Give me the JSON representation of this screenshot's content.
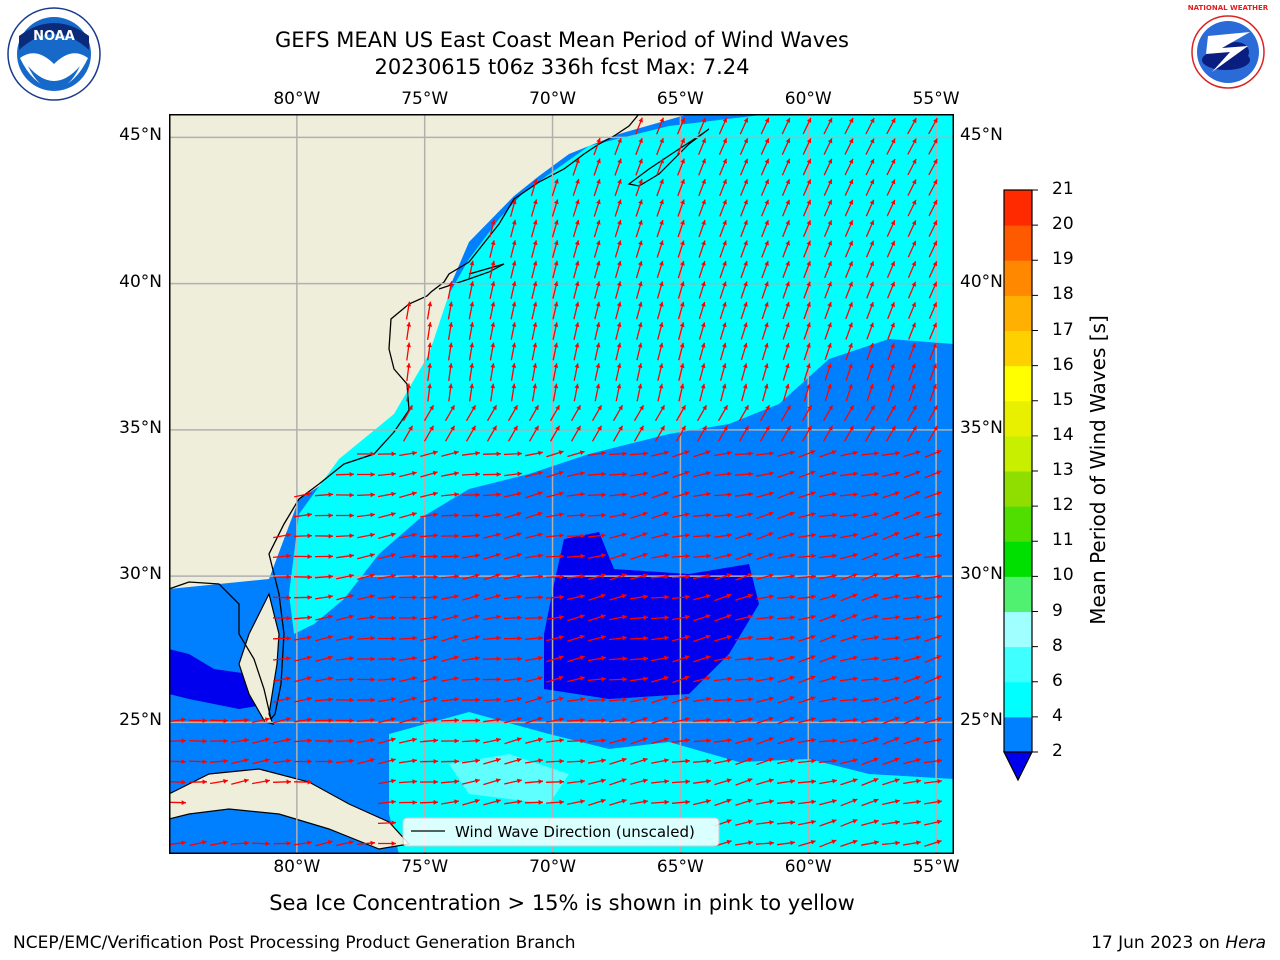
{
  "title": {
    "line1": "GEFS MEAN US East Coast Mean Period of Wind Waves",
    "line2": "20230615 t06z 336h fcst   Max: 7.24"
  },
  "logos": {
    "left": {
      "icon": "noaa-logo-icon",
      "text": "NOAA"
    },
    "right": {
      "icon": "nws-logo-icon",
      "text": "NATIONAL WEATHER SERVICE"
    }
  },
  "map": {
    "lon_labels": [
      "80°W",
      "75°W",
      "70°W",
      "65°W",
      "60°W",
      "55°W"
    ],
    "lat_labels": [
      "45°N",
      "40°N",
      "35°N",
      "30°N",
      "25°N"
    ],
    "lon_values": [
      -80,
      -75,
      -70,
      -65,
      -60,
      -55
    ],
    "lat_values": [
      45,
      40,
      35,
      30,
      25
    ],
    "extent": {
      "lon_min": -85,
      "lon_max": -54.3,
      "lat_min": 20.5,
      "lat_max": 45.8
    },
    "land_color": "#efeedb",
    "arrow_color": "#ff0000",
    "legend_label": "Wind Wave Direction (unscaled)"
  },
  "colorbar": {
    "label": "Mean Period of Wind Waves [s]",
    "ticks": [
      "2",
      "4",
      "6",
      "8",
      "9",
      "10",
      "11",
      "12",
      "13",
      "14",
      "15",
      "16",
      "17",
      "18",
      "19",
      "20",
      "21"
    ],
    "levels": [
      2,
      4,
      6,
      8,
      9,
      10,
      11,
      12,
      13,
      14,
      15,
      16,
      17,
      18,
      19,
      20,
      21
    ],
    "under_color": "#0000ee",
    "colors": [
      "#0080ff",
      "#00ffff",
      "#40ffff",
      "#a0ffff",
      "#50f070",
      "#00e000",
      "#50dd00",
      "#90dd00",
      "#c8ef00",
      "#e8f000",
      "#ffff00",
      "#ffd000",
      "#ffb000",
      "#ff8800",
      "#ff5a00",
      "#ff2a00"
    ]
  },
  "notes": {
    "ice": "Sea Ice Concentration > 15% is shown in pink to yellow",
    "branch": "NCEP/EMC/Verification Post Processing Product Generation Branch",
    "date_prefix": "17 Jun 2023 on ",
    "machine": "Hera"
  }
}
